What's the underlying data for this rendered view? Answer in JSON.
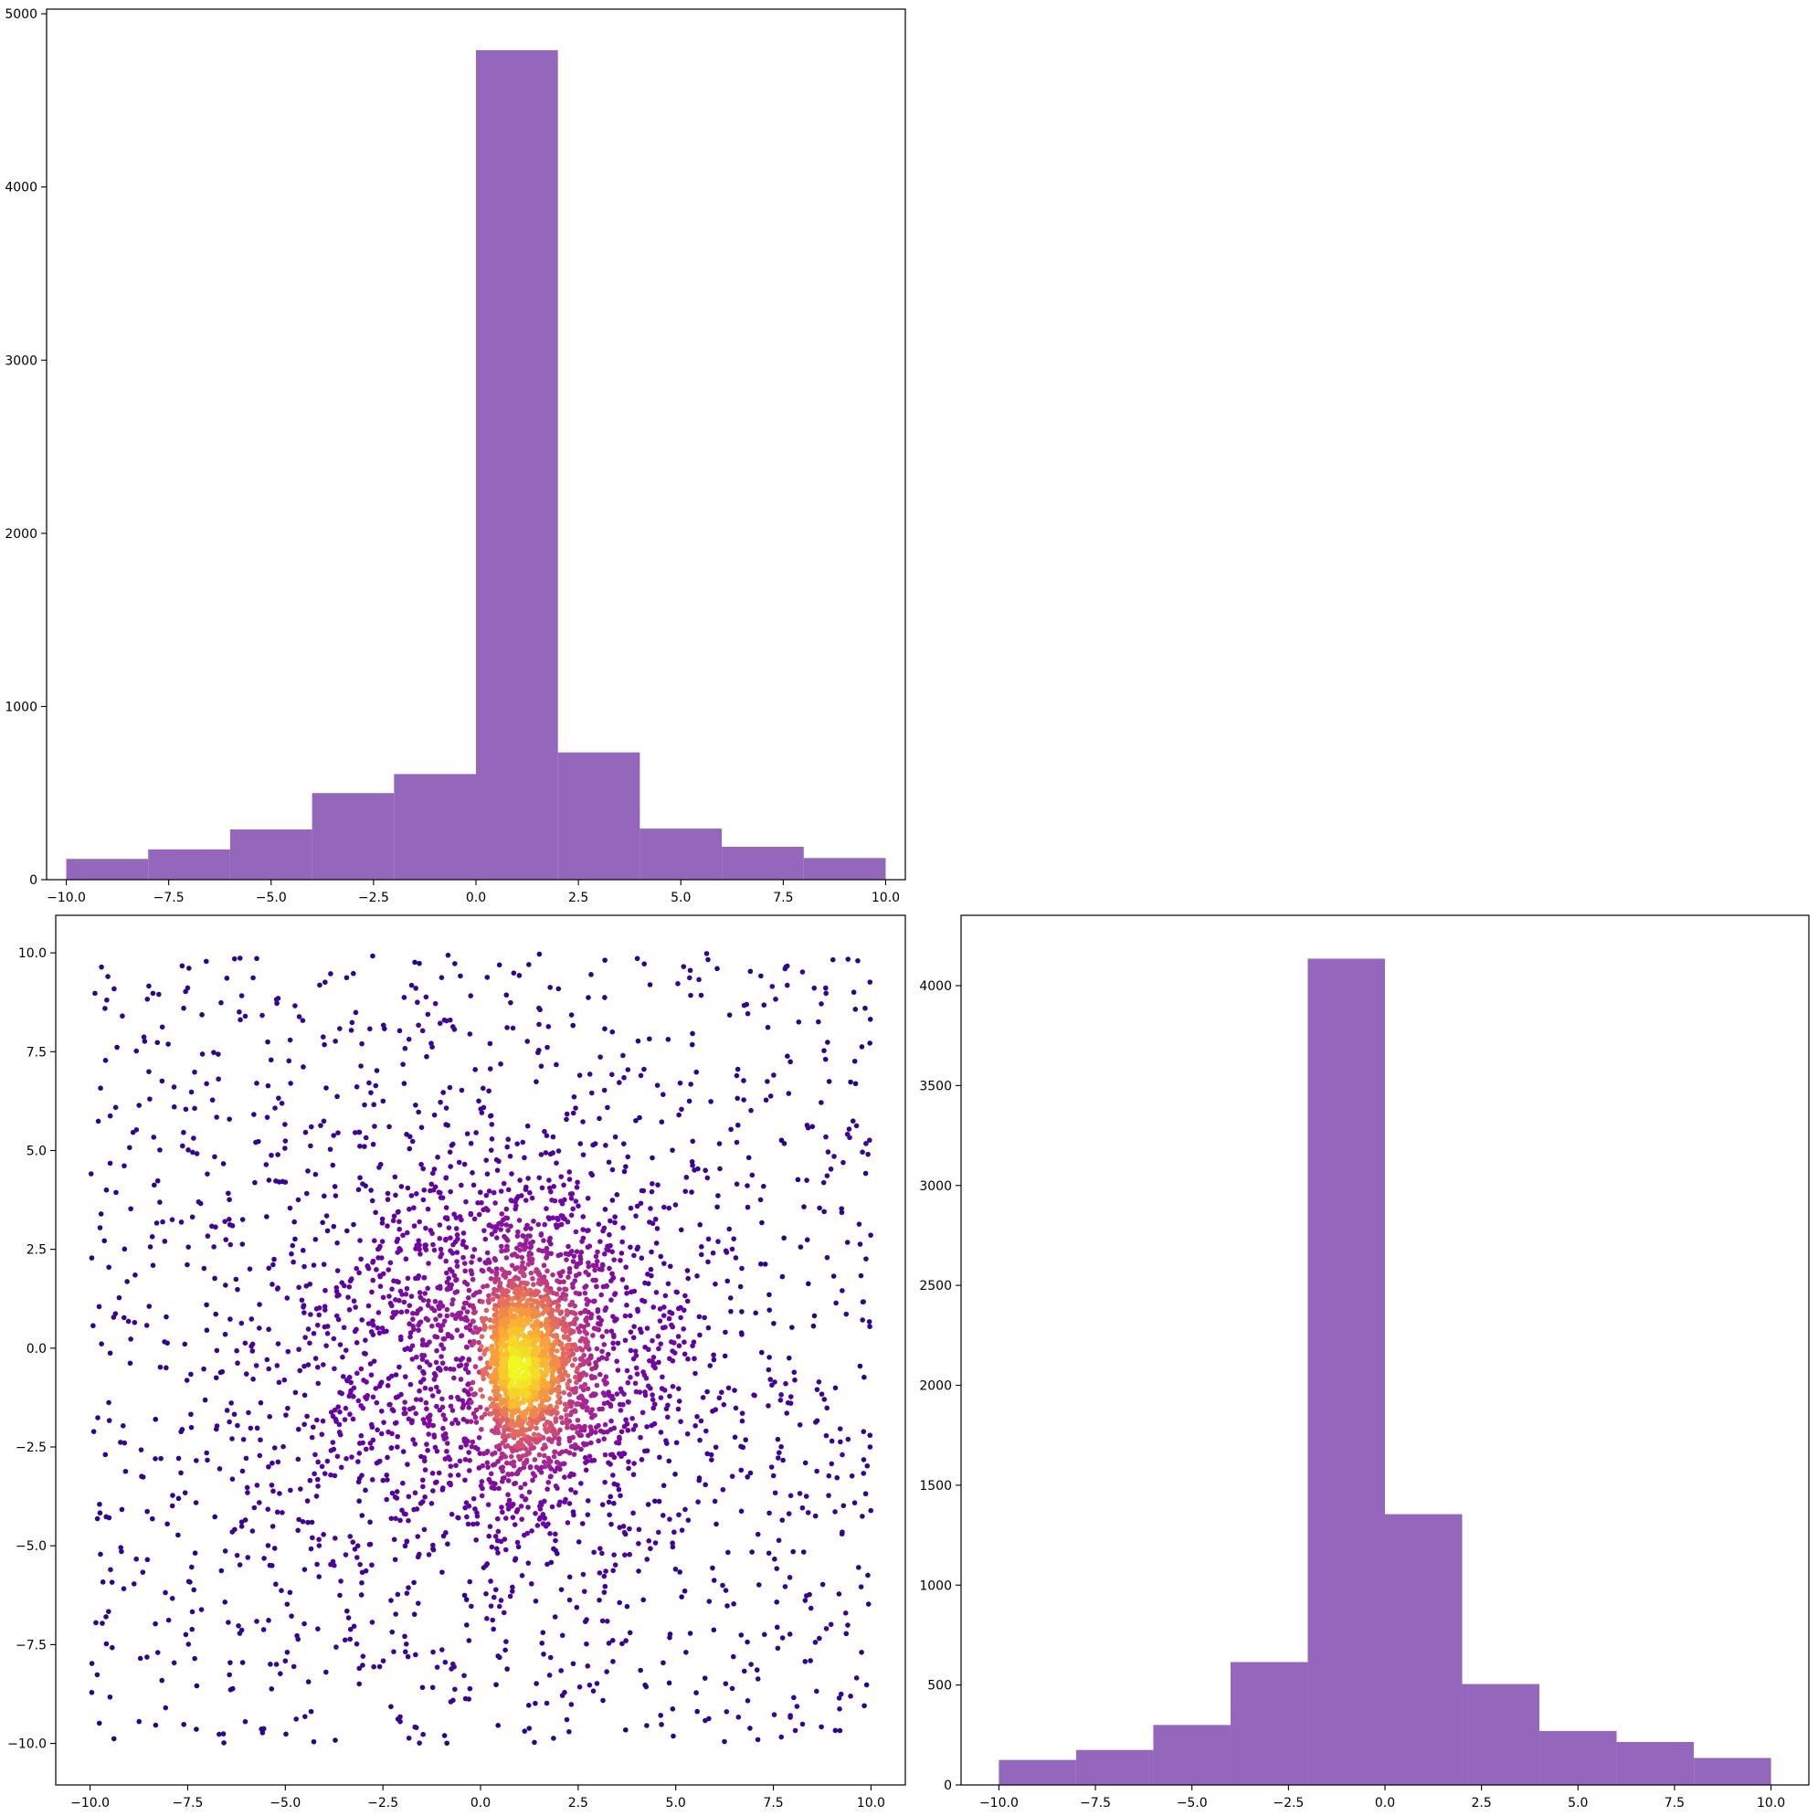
{
  "chart_data": [
    {
      "type": "bar",
      "panel": "top-left",
      "title": "",
      "xlabel": "",
      "ylabel": "",
      "bin_edges": [
        -10,
        -8,
        -6,
        -4,
        -2,
        0,
        2,
        4,
        6,
        8,
        10
      ],
      "values": [
        120,
        175,
        290,
        500,
        610,
        4790,
        735,
        295,
        190,
        125
      ],
      "color": "#9467bd",
      "xlim": [
        -10,
        10
      ],
      "ylim": [
        0,
        5000
      ],
      "xticks": [
        -10,
        -7.5,
        -5,
        -2.5,
        0,
        2.5,
        5,
        7.5,
        10
      ],
      "xtick_labels": [
        "−10.0",
        "−7.5",
        "−5.0",
        "−2.5",
        "0.0",
        "2.5",
        "5.0",
        "7.5",
        "10.0"
      ],
      "yticks": [
        0,
        1000,
        2000,
        3000,
        4000,
        5000
      ],
      "ytick_labels": [
        "0",
        "1000",
        "2000",
        "3000",
        "4000",
        "5000"
      ],
      "grid": false
    },
    {
      "type": "scatter",
      "panel": "bottom-left",
      "title": "",
      "xlabel": "",
      "ylabel": "",
      "colormap": "plasma",
      "colormap_stops": [
        "#0d0887",
        "#6a00a8",
        "#b12a90",
        "#e16462",
        "#fca636",
        "#f0f921"
      ],
      "point_count": 4400,
      "description_of_distribution": "uniform background over [-10,10]x[-10,10] plus a dense cluster near (0.7,-0.3), color encodes local point density",
      "xlim": [
        -10,
        10
      ],
      "ylim": [
        -10,
        10
      ],
      "xticks": [
        -10,
        -7.5,
        -5,
        -2.5,
        0,
        2.5,
        5,
        7.5,
        10
      ],
      "xtick_labels": [
        "−10.0",
        "−7.5",
        "−5.0",
        "−2.5",
        "0.0",
        "2.5",
        "5.0",
        "7.5",
        "10.0"
      ],
      "yticks": [
        -10,
        -7.5,
        -5,
        -2.5,
        0,
        2.5,
        5,
        7.5,
        10
      ],
      "ytick_labels": [
        "−10.0",
        "−7.5",
        "−5.0",
        "−2.5",
        "0.0",
        "2.5",
        "5.0",
        "7.5",
        "10.0"
      ],
      "grid": false
    },
    {
      "type": "bar",
      "panel": "bottom-right",
      "title": "",
      "xlabel": "",
      "ylabel": "",
      "bin_edges": [
        -10,
        -8,
        -6,
        -4,
        -2,
        0,
        2,
        4,
        6,
        8,
        10
      ],
      "values": [
        125,
        175,
        300,
        615,
        4135,
        1355,
        505,
        270,
        215,
        135
      ],
      "color": "#9467bd",
      "xlim": [
        -10,
        10
      ],
      "ylim": [
        0,
        4350
      ],
      "xticks": [
        -10,
        -7.5,
        -5,
        -2.5,
        0,
        2.5,
        5,
        7.5,
        10
      ],
      "xtick_labels": [
        "−10.0",
        "−7.5",
        "−5.0",
        "−2.5",
        "0.0",
        "2.5",
        "5.0",
        "7.5",
        "10.0"
      ],
      "yticks": [
        0,
        500,
        1000,
        1500,
        2000,
        2500,
        3000,
        3500,
        4000
      ],
      "ytick_labels": [
        "0",
        "500",
        "1000",
        "1500",
        "2000",
        "2500",
        "3000",
        "3500",
        "4000"
      ],
      "grid": false
    }
  ]
}
